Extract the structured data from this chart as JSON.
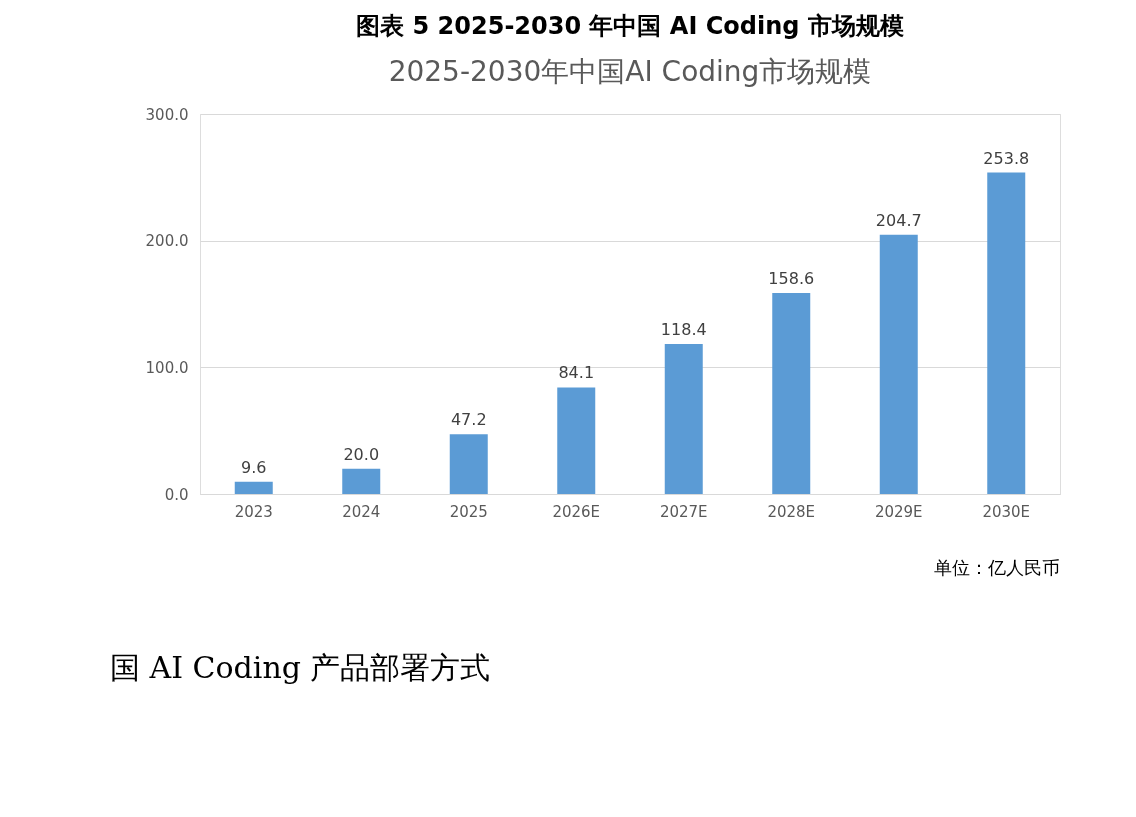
{
  "chart_data": {
    "type": "bar",
    "title": "图表 5 2025-2030 年中国 AI Coding 市场规模",
    "subtitle": "2025-2030年中国AI Coding市场规模",
    "categories": [
      "2023",
      "2024",
      "2025",
      "2026E",
      "2027E",
      "2028E",
      "2029E",
      "2030E"
    ],
    "values": [
      9.6,
      20.0,
      47.2,
      84.1,
      118.4,
      158.6,
      204.7,
      253.8
    ],
    "value_labels": [
      "9.6",
      "20.0",
      "47.2",
      "84.1",
      "118.4",
      "158.6",
      "204.7",
      "253.8"
    ],
    "color": "#5b9bd5",
    "ylim": [
      0,
      300
    ],
    "yticks": [
      {
        "value": 0,
        "label": "0.0"
      },
      {
        "value": 100,
        "label": "100.0"
      },
      {
        "value": 200,
        "label": "200.0"
      },
      {
        "value": 300,
        "label": "300.0"
      }
    ],
    "grid": "y",
    "annotations": [
      "单位：亿人民币",
      "国 AI Coding 产品部署方式"
    ]
  }
}
